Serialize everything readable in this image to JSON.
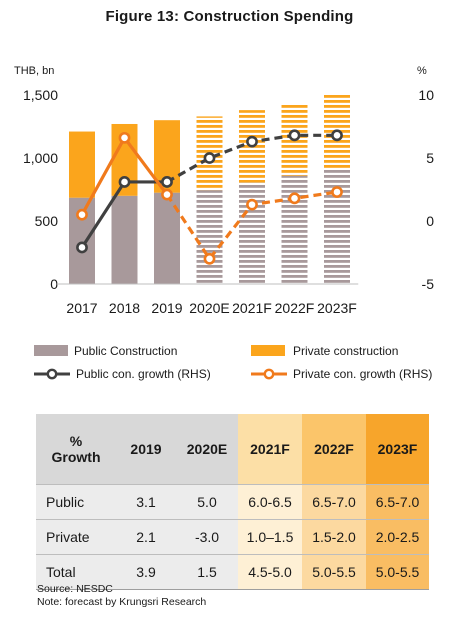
{
  "title": "Figure 13: Construction Spending",
  "colors": {
    "public": "#a8999b",
    "private": "#fba51c",
    "public_line": "#404040",
    "private_line": "#f07a1c",
    "table_header_bg": "#d8d8d8",
    "table_body_bg": "#ececec",
    "f2021_header": "#fcdfa6",
    "f2021_body": "#fef0d5",
    "f2022_header": "#fbc56a",
    "f2022_body": "#fcd9a0",
    "f2023_header": "#f7a52b",
    "f2023_body": "#f9bd63"
  },
  "chart_data": {
    "type": "bar",
    "categories": [
      "2017",
      "2018",
      "2019",
      "2020E",
      "2021F",
      "2022F",
      "2023F"
    ],
    "forecast_from_index": 3,
    "left_axis": {
      "unit_label": "THB, bn",
      "ylim": [
        0,
        1500
      ],
      "ticks": [
        "0",
        "500",
        "1,000",
        "1,500"
      ],
      "tick_values": [
        0,
        500,
        1000,
        1500
      ]
    },
    "right_axis": {
      "unit_label": "%",
      "ylim": [
        -5,
        10
      ],
      "ticks": [
        "-5",
        "0",
        "5",
        "10"
      ],
      "tick_values": [
        -5,
        0,
        5,
        10
      ]
    },
    "series": [
      {
        "name": "Public Construction",
        "kind": "stacked-bar",
        "axis": "left",
        "values": [
          685,
          700,
          725,
          745,
          805,
          860,
          920
        ]
      },
      {
        "name": "Private construction",
        "kind": "stacked-bar",
        "axis": "left",
        "values": [
          525,
          570,
          575,
          585,
          575,
          575,
          580
        ]
      },
      {
        "name": "Public con. growth (RHS)",
        "kind": "line",
        "axis": "right",
        "values": [
          -2.1,
          3.1,
          3.1,
          5.0,
          6.3,
          6.8,
          6.8
        ]
      },
      {
        "name": "Private con. growth (RHS)",
        "kind": "line",
        "axis": "right",
        "values": [
          0.5,
          6.6,
          2.1,
          -3.0,
          1.3,
          1.8,
          2.3
        ]
      }
    ],
    "legend": {
      "placement": "bottom",
      "items": [
        "Public Construction",
        "Private construction",
        "Public con. growth (RHS)",
        "Private con. growth (RHS)"
      ]
    },
    "grid": false
  },
  "table": {
    "header": [
      "% Growth",
      "2019",
      "2020E",
      "2021F",
      "2022F",
      "2023F"
    ],
    "rows": [
      [
        "Public",
        "3.1",
        "5.0",
        "6.0-6.5",
        "6.5-7.0",
        "6.5-7.0"
      ],
      [
        "Private",
        "2.1",
        "-3.0",
        "1.0–1.5",
        "1.5-2.0",
        "2.0-2.5"
      ],
      [
        "Total",
        "3.9",
        "1.5",
        "4.5-5.0",
        "5.0-5.5",
        "5.0-5.5"
      ]
    ]
  },
  "source": "Source: NESDC",
  "note": "Note: forecast by Krungsri Research"
}
